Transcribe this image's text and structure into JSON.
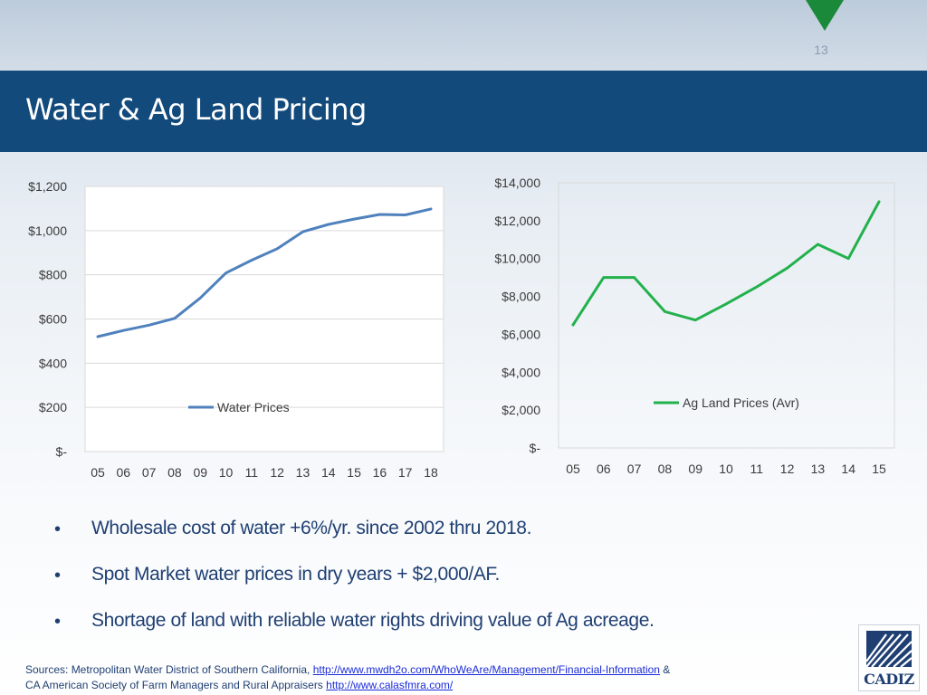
{
  "slide": {
    "number": "13",
    "title": "Water & Ag Land Pricing",
    "accent_color": "#124a7c",
    "triangle_color": "#1a8a3a"
  },
  "chart_data": [
    {
      "type": "line",
      "x": [
        "05",
        "06",
        "07",
        "08",
        "09",
        "10",
        "11",
        "12",
        "13",
        "14",
        "15",
        "16",
        "17",
        "18"
      ],
      "series": [
        {
          "name": "Water Prices",
          "color": "#4f81bd",
          "values": [
            520,
            548,
            572,
            603,
            695,
            808,
            866,
            918,
            995,
            1028,
            1052,
            1073,
            1071,
            1098
          ]
        }
      ],
      "yticks": [
        "$1,200",
        "$1,000",
        "$800",
        "$600",
        "$400",
        "$200",
        "$-"
      ],
      "ylim": [
        0,
        1200
      ],
      "legend": "center",
      "grid": "horizontal"
    },
    {
      "type": "line",
      "x": [
        "05",
        "06",
        "07",
        "08",
        "09",
        "10",
        "11",
        "12",
        "13",
        "14",
        "15"
      ],
      "series": [
        {
          "name": "Ag Land Prices (Avr)",
          "color": "#22b14c",
          "values": [
            6500,
            9000,
            9000,
            7200,
            6750,
            7600,
            8500,
            9500,
            10750,
            10000,
            13000
          ]
        }
      ],
      "yticks": [
        "$14,000",
        "$12,000",
        "$10,000",
        "$8,000",
        "$6,000",
        "$4,000",
        "$2,000",
        "$-"
      ],
      "ylim": [
        0,
        14000
      ],
      "legend": "upper-right",
      "grid": "none"
    }
  ],
  "bullets": [
    "Wholesale cost of water +6%/yr. since 2002 thru 2018.",
    "Spot Market water prices in dry years + $2,000/AF.",
    "Shortage of land with reliable water rights driving value of Ag acreage."
  ],
  "bullet_symbol": "•",
  "sources": {
    "line1_prefix": "Sources: Metropolitan Water District of Southern California, ",
    "link1": "http://www.mwdh2o.com/WhoWeAre/Management/Financial-Information",
    "line1_suffix": " &",
    "line2_prefix": "CA American Society of Farm Managers and Rural Appraisers  ",
    "link2": "http://www.calasfmra.com/"
  },
  "logo": {
    "text": "CADIZ",
    "icon": "cadiz-logo-icon"
  }
}
